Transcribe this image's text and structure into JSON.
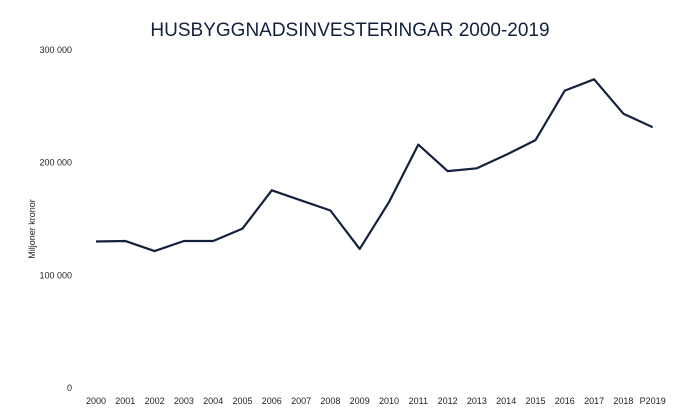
{
  "chart_data": {
    "type": "line",
    "title": "HUSBYGGNADSINVESTERINGAR 2000-2019",
    "xlabel": "",
    "ylabel": "Miljoner kronor",
    "categories": [
      "2000",
      "2001",
      "2002",
      "2003",
      "2004",
      "2005",
      "2006",
      "2007",
      "2008",
      "2009",
      "2010",
      "2011",
      "2012",
      "2013",
      "2014",
      "2015",
      "2016",
      "2017",
      "2018",
      "P2019"
    ],
    "series": [
      {
        "values": [
          130000,
          130500,
          121500,
          130500,
          130500,
          141500,
          175500,
          166500,
          157500,
          123500,
          165000,
          216000,
          192500,
          195000,
          207000,
          220000,
          264000,
          274000,
          243500,
          231500
        ]
      }
    ],
    "y_ticks": [
      0,
      100000,
      200000,
      300000
    ],
    "y_tick_labels": [
      "0",
      "100 000",
      "200 000",
      "300 000"
    ],
    "ylim": [
      0,
      300000
    ],
    "grid": false,
    "legend": "none",
    "line_color": "#14213d"
  }
}
